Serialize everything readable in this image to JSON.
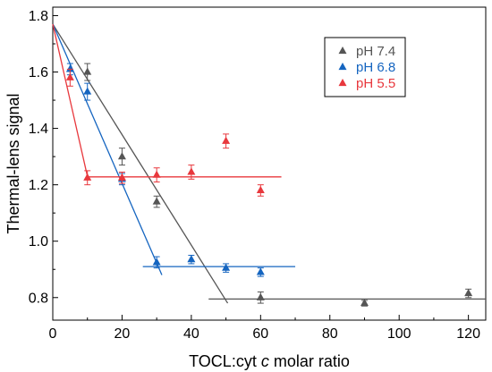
{
  "chart_data": {
    "type": "scatter",
    "title": "",
    "xlabel": "TOCL:cyt ",
    "xlabel_italic": "c",
    "xlabel_suffix": " molar ratio",
    "ylabel": "Thermal-lens signal",
    "xlim": [
      0,
      125
    ],
    "ylim": [
      0.72,
      1.83
    ],
    "x_ticks": [
      0,
      20,
      40,
      60,
      80,
      100,
      120
    ],
    "y_ticks": [
      0.8,
      1.0,
      1.2,
      1.4,
      1.6,
      1.8
    ],
    "x_tick_labels": [
      "0",
      "20",
      "40",
      "60",
      "80",
      "100",
      "120"
    ],
    "y_tick_labels": [
      "0.8",
      "1.0",
      "1.2",
      "1.4",
      "1.6",
      "1.8"
    ],
    "grid": false,
    "legend_position": "top-right",
    "series": [
      {
        "name": "pH 7.4",
        "color": "#555555",
        "marker": "triangle-up",
        "points": [
          {
            "x": 10,
            "y": 1.6,
            "err": 0.03
          },
          {
            "x": 20,
            "y": 1.3,
            "err": 0.03
          },
          {
            "x": 30,
            "y": 1.14,
            "err": 0.02
          },
          {
            "x": 60,
            "y": 0.8,
            "err": 0.02
          },
          {
            "x": 90,
            "y": 0.78,
            "err": 0.01
          },
          {
            "x": 120,
            "y": 0.815,
            "err": 0.015
          }
        ],
        "fit_lines": [
          {
            "x": [
              0,
              50.5
            ],
            "y": [
              1.77,
              0.78
            ]
          },
          {
            "x": [
              45,
              125
            ],
            "y": [
              0.795,
              0.795
            ]
          }
        ]
      },
      {
        "name": "pH 6.8",
        "color": "#1565c0",
        "marker": "triangle-up",
        "points": [
          {
            "x": 5,
            "y": 1.61,
            "err": 0.02
          },
          {
            "x": 10,
            "y": 1.53,
            "err": 0.03
          },
          {
            "x": 20,
            "y": 1.22,
            "err": 0.02
          },
          {
            "x": 30,
            "y": 0.925,
            "err": 0.02
          },
          {
            "x": 40,
            "y": 0.935,
            "err": 0.015
          },
          {
            "x": 50,
            "y": 0.905,
            "err": 0.015
          },
          {
            "x": 60,
            "y": 0.89,
            "err": 0.015
          }
        ],
        "fit_lines": [
          {
            "x": [
              0,
              31.5
            ],
            "y": [
              1.77,
              0.88
            ]
          },
          {
            "x": [
              26,
              70
            ],
            "y": [
              0.91,
              0.91
            ]
          }
        ]
      },
      {
        "name": "pH 5.5",
        "color": "#e8383d",
        "marker": "triangle-up",
        "points": [
          {
            "x": 5,
            "y": 1.58,
            "err": 0.03
          },
          {
            "x": 10,
            "y": 1.225,
            "err": 0.025
          },
          {
            "x": 20,
            "y": 1.225,
            "err": 0.02
          },
          {
            "x": 30,
            "y": 1.235,
            "err": 0.025
          },
          {
            "x": 40,
            "y": 1.245,
            "err": 0.025
          },
          {
            "x": 50,
            "y": 1.355,
            "err": 0.025
          },
          {
            "x": 60,
            "y": 1.18,
            "err": 0.02
          }
        ],
        "fit_lines": [
          {
            "x": [
              0,
              10
            ],
            "y": [
              1.77,
              1.23
            ]
          },
          {
            "x": [
              10,
              66
            ],
            "y": [
              1.228,
              1.228
            ]
          }
        ]
      }
    ]
  }
}
